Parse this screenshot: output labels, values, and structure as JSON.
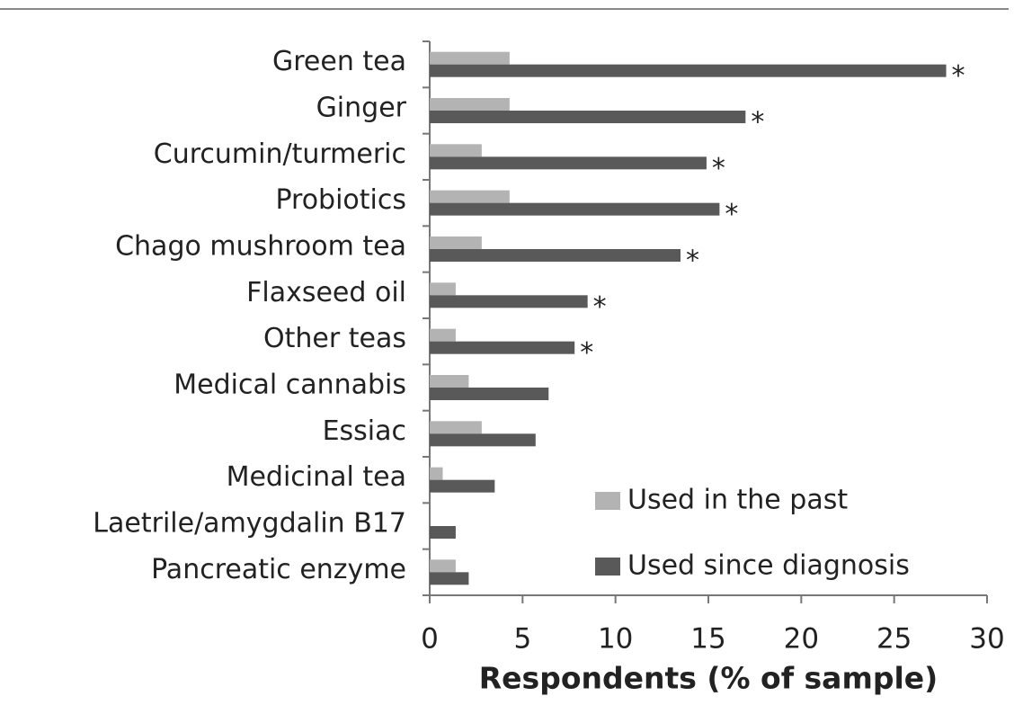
{
  "chart_data": {
    "type": "bar",
    "orientation": "horizontal",
    "x_label": "Respondents (% of sample)",
    "categories": [
      "Green tea",
      "Ginger",
      "Curcumin/turmeric",
      "Probiotics",
      "Chago mushroom tea",
      "Flaxseed oil",
      "Other teas",
      "Medical cannabis",
      "Essiac",
      "Medicinal tea",
      "Laetrile/amygdalin B17",
      "Pancreatic enzyme"
    ],
    "series": [
      {
        "name": "Used in the past",
        "color": "#b3b3b3",
        "values": [
          4.3,
          4.3,
          2.8,
          4.3,
          2.8,
          1.4,
          1.4,
          2.1,
          2.8,
          0.7,
          0,
          1.4
        ]
      },
      {
        "name": "Used since diagnosis",
        "color": "#595959",
        "values": [
          27.8,
          17.0,
          14.9,
          15.6,
          13.5,
          8.5,
          7.8,
          6.4,
          5.7,
          3.5,
          1.4,
          2.1
        ]
      }
    ],
    "annotations": [
      "*",
      "*",
      "*",
      "*",
      "*",
      "*",
      "*",
      null,
      null,
      null,
      null,
      null
    ],
    "xlim": [
      0,
      30
    ],
    "xticks": [
      0,
      5,
      10,
      15,
      20,
      25,
      30
    ],
    "legend": "lower right",
    "grid": false
  }
}
